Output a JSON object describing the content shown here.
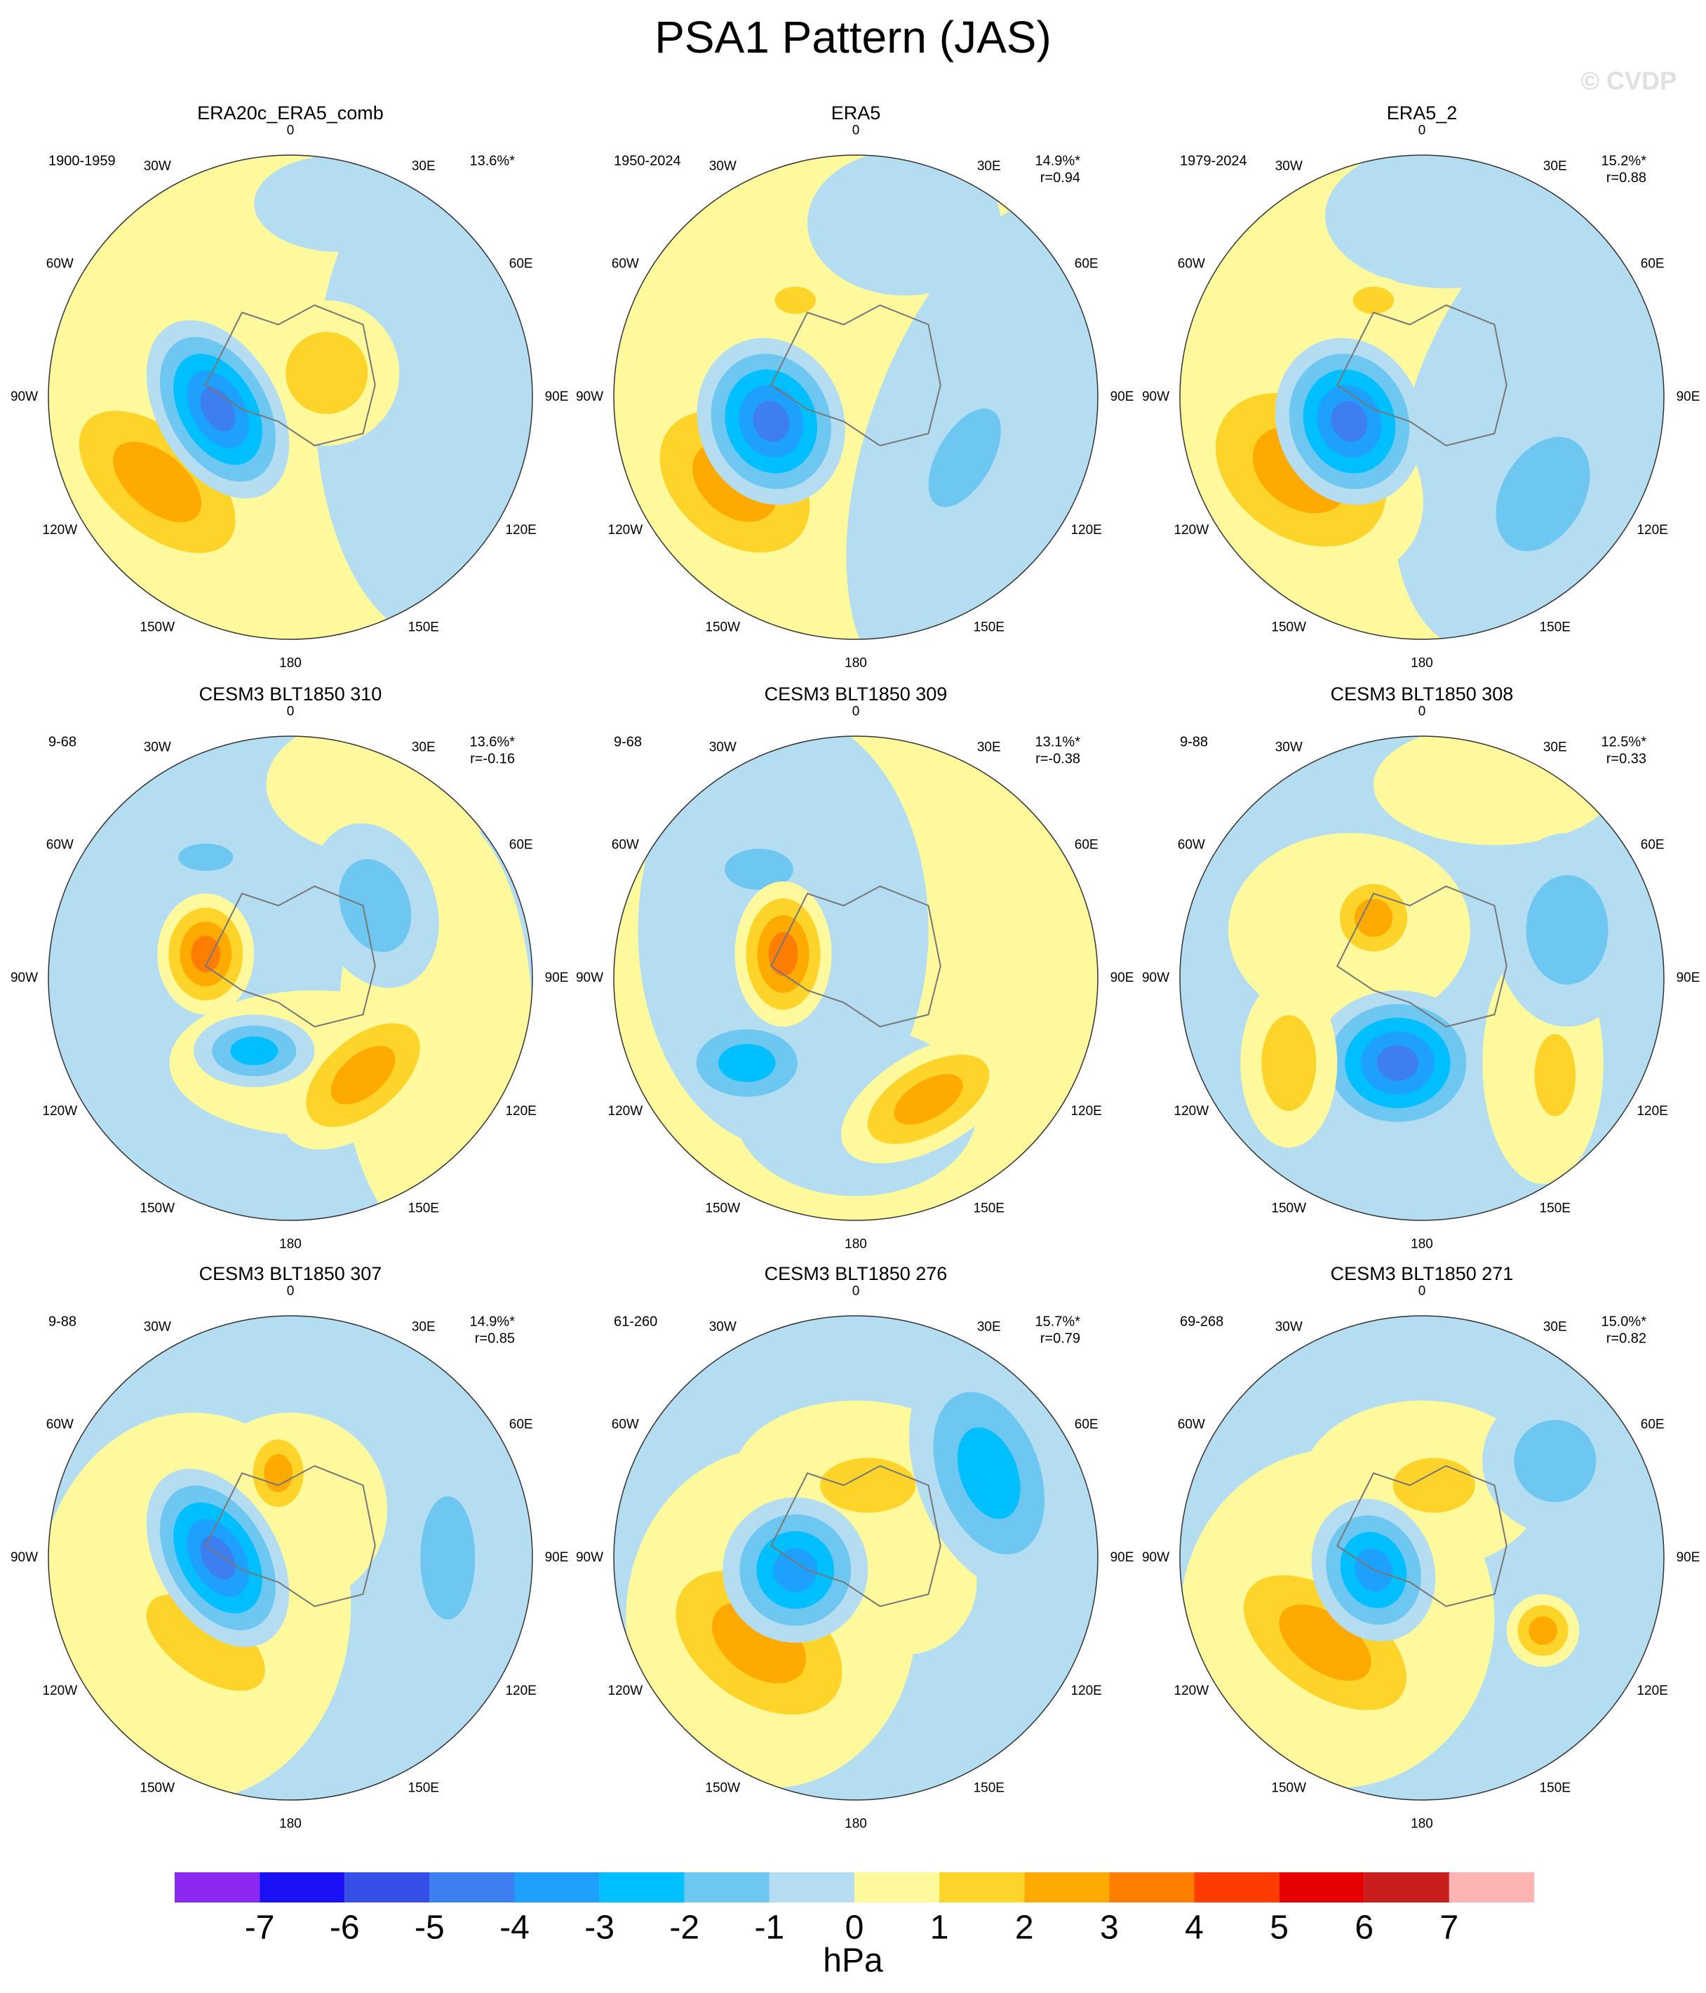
{
  "header": {
    "title": "PSA1 Pattern (JAS)",
    "watermark": "© CVDP"
  },
  "lon_labels": [
    "0",
    "30E",
    "60E",
    "90E",
    "120E",
    "150E",
    "180",
    "150W",
    "120W",
    "90W",
    "60W",
    "30W"
  ],
  "panels": [
    {
      "title": "ERA20c_ERA5_comb",
      "period": "1900-1959",
      "pct": "13.6%*",
      "r": null
    },
    {
      "title": "ERA5",
      "period": "1950-2024",
      "pct": "14.9%*",
      "r": "r=0.94"
    },
    {
      "title": "ERA5_2",
      "period": "1979-2024",
      "pct": "15.2%*",
      "r": "r=0.88"
    },
    {
      "title": "CESM3 BLT1850 310",
      "period": "9-68",
      "pct": "13.6%*",
      "r": "r=-0.16"
    },
    {
      "title": "CESM3 BLT1850 309",
      "period": "9-68",
      "pct": "13.1%*",
      "r": "r=-0.38"
    },
    {
      "title": "CESM3 BLT1850 308",
      "period": "9-88",
      "pct": "12.5%*",
      "r": "r=0.33"
    },
    {
      "title": "CESM3 BLT1850 307",
      "period": "9-88",
      "pct": "14.9%*",
      "r": "r=0.85"
    },
    {
      "title": "CESM3 BLT1850 276",
      "period": "61-260",
      "pct": "15.7%*",
      "r": "r=0.79"
    },
    {
      "title": "CESM3 BLT1850 271",
      "period": "69-268",
      "pct": "15.0%*",
      "r": "r=0.82"
    }
  ],
  "colorbar": {
    "levels": [
      -7,
      -6,
      -5,
      -4,
      -3,
      -2,
      -1,
      0,
      1,
      2,
      3,
      4,
      5,
      6,
      7
    ],
    "colors": [
      "#8c28f0",
      "#1a12f5",
      "#3550e6",
      "#3d7ff0",
      "#1ea0ff",
      "#00bfff",
      "#6ec7f0",
      "#b4ddf2",
      "#fff99e",
      "#ffd42a",
      "#ffaa00",
      "#ff7d00",
      "#ff3c00",
      "#e60000",
      "#c81e1e",
      "#ffb4b4"
    ],
    "unit": "hPa"
  }
}
